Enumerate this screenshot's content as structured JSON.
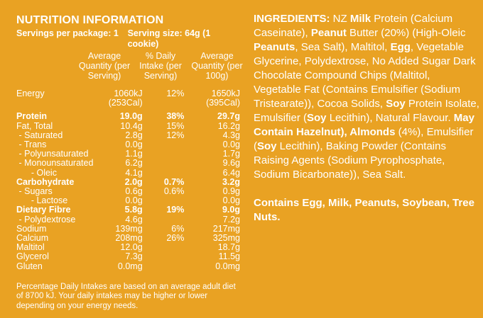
{
  "nutrition": {
    "title": "NUTRITION INFORMATION",
    "servings_per_package": "Servings per package: 1",
    "serving_size": "Serving size: 64g (1 cookie)",
    "col_avg_serving": "Average Quantity (per Serving)",
    "col_daily_intake": "% Daily Intake (per Serving)",
    "col_avg_100g": "Average Quantity (per 100g)",
    "rows": [
      {
        "name": "Energy",
        "serving": "1060kJ",
        "serving2": "(253Cal)",
        "di": "12%",
        "per100": "1650kJ",
        "per100_2": "(395Cal)",
        "bold": false,
        "gap": false
      },
      {
        "name": "Protein",
        "serving": "19.0g",
        "di": "38%",
        "per100": "29.7g",
        "bold": true,
        "gap": true
      },
      {
        "name": "Fat, Total",
        "serving": "10.4g",
        "di": "15%",
        "per100": "16.2g",
        "bold": false,
        "gap": false
      },
      {
        "name": " - Saturated",
        "serving": "2.8g",
        "di": "12%",
        "per100": "4.3g",
        "bold": false,
        "gap": false
      },
      {
        "name": " - Trans",
        "serving": "0.0g",
        "di": "",
        "per100": "0.0g",
        "bold": false,
        "gap": false
      },
      {
        "name": " - Polyunsaturated",
        "serving": "1.1g",
        "di": "",
        "per100": "1.7g",
        "bold": false,
        "gap": false
      },
      {
        "name": " - Monounsaturated",
        "serving": "6.2g",
        "di": "",
        "per100": "9.6g",
        "bold": false,
        "gap": false
      },
      {
        "name": "      - Oleic",
        "serving": "4.1g",
        "di": "",
        "per100": "6.4g",
        "bold": false,
        "gap": false
      },
      {
        "name": "Carbohydrate",
        "serving": "2.0g",
        "di": "0.7%",
        "per100": "3.2g",
        "bold": true,
        "gap": false
      },
      {
        "name": " - Sugars",
        "serving": "0.6g",
        "di": "0.6%",
        "per100": "0.9g",
        "bold": false,
        "gap": false
      },
      {
        "name": "      - Lactose",
        "serving": "0.0g",
        "di": "",
        "per100": "0.0g",
        "bold": false,
        "gap": false
      },
      {
        "name": "Dietary Fibre",
        "serving": "5.8g",
        "di": "19%",
        "per100": "9.0g",
        "bold": true,
        "gap": false
      },
      {
        "name": " - Polydextrose",
        "serving": "4.6g",
        "di": "",
        "per100": "7.2g",
        "bold": false,
        "gap": false
      },
      {
        "name": "Sodium",
        "serving": "139mg",
        "di": "6%",
        "per100": "217mg",
        "bold": false,
        "gap": false
      },
      {
        "name": "Calcium",
        "serving": "208mg",
        "di": "26%",
        "per100": "325mg",
        "bold": false,
        "gap": false
      },
      {
        "name": "Maltitol",
        "serving": "12.0g",
        "di": "",
        "per100": "18.7g",
        "bold": false,
        "gap": false
      },
      {
        "name": "Glycerol",
        "serving": "7.3g",
        "di": "",
        "per100": "11.5g",
        "bold": false,
        "gap": false
      },
      {
        "name": "Gluten",
        "serving": "0.0mg",
        "di": "",
        "per100": "0.0mg",
        "bold": false,
        "gap": false
      }
    ],
    "footnote": "Percentage Daily Intakes are based on an average adult diet of 8700 kJ. Your daily intakes may be higher or lower depending on your energy needs."
  },
  "ingredients": {
    "segments": [
      {
        "t": "INGREDIENTS:",
        "b": true
      },
      {
        "t": " NZ ",
        "b": false
      },
      {
        "t": "Milk",
        "b": true
      },
      {
        "t": " Protein (Calcium Caseinate), ",
        "b": false
      },
      {
        "t": "Peanut",
        "b": true
      },
      {
        "t": " Butter (20%) (High-Oleic ",
        "b": false
      },
      {
        "t": "Peanuts",
        "b": true
      },
      {
        "t": ", Sea Salt), Maltitol, ",
        "b": false
      },
      {
        "t": "Egg",
        "b": true
      },
      {
        "t": ", Vegetable Glycerine, Polydextrose, No Added Sugar Dark Chocolate Compound Chips (Maltitol, Vegetable Fat (Contains Emulsifier (Sodium Tristearate)), Cocoa Solids, ",
        "b": false
      },
      {
        "t": "Soy",
        "b": true
      },
      {
        "t": " Protein Isolate, Emulsifier (",
        "b": false
      },
      {
        "t": "Soy",
        "b": true
      },
      {
        "t": " Lecithin), Natural Flavour. ",
        "b": false
      },
      {
        "t": "May Contain Hazelnut), Almonds",
        "b": true
      },
      {
        "t": " (4%), Emulsifier (",
        "b": false
      },
      {
        "t": "Soy",
        "b": true
      },
      {
        "t": " Lecithin), Baking Powder (Contains Raising Agents (Sodium Pyrophosphate, Sodium Bicarbonate)), Sea Salt.",
        "b": false
      }
    ],
    "contains": "Contains Egg, Milk, Peanuts, Soybean, Tree Nuts."
  }
}
